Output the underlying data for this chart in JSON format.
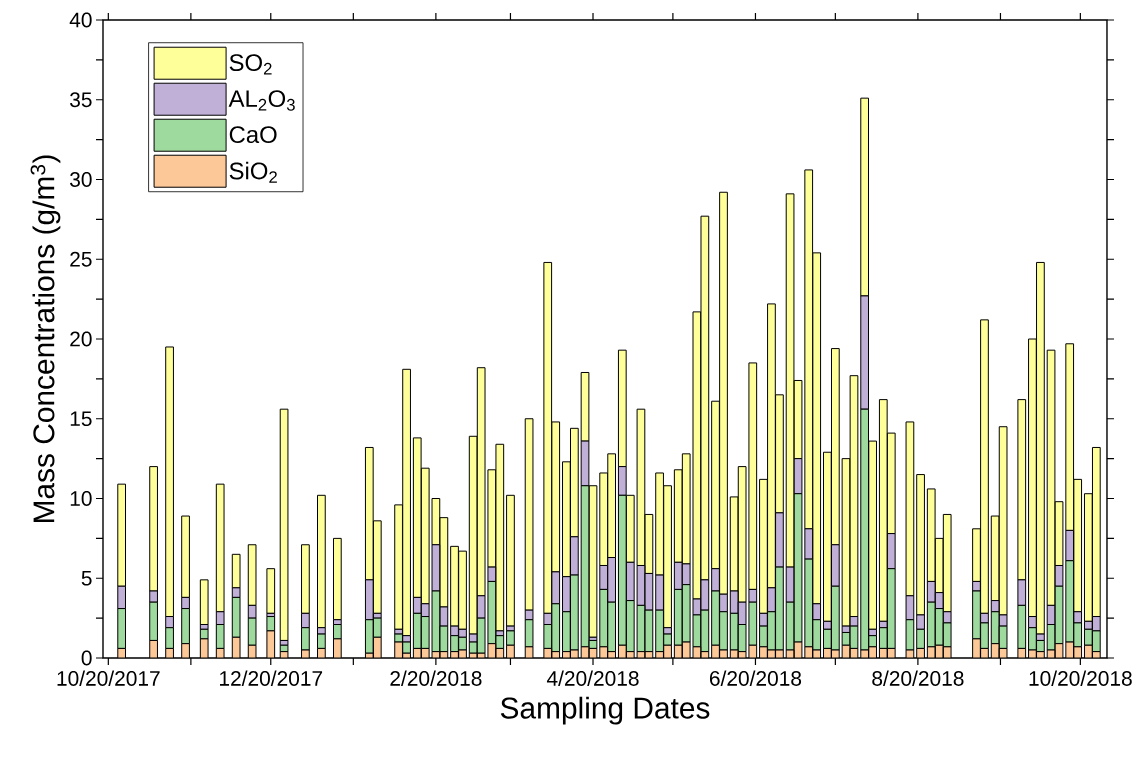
{
  "chart_data": {
    "type": "bar",
    "stacked": true,
    "xlabel": "Sampling Dates",
    "ylabel": "Mass Concentrations (g/m$^{3}$)",
    "x": [
      "2017-10-25",
      "2017-11-06",
      "2017-11-12",
      "2017-11-18",
      "2017-11-25",
      "2017-12-01",
      "2017-12-07",
      "2017-12-13",
      "2017-12-20",
      "2017-12-25",
      "2018-01-02",
      "2018-01-08",
      "2018-01-14",
      "2018-01-26",
      "2018-01-29",
      "2018-02-06",
      "2018-02-09",
      "2018-02-13",
      "2018-02-16",
      "2018-02-20",
      "2018-02-23",
      "2018-02-27",
      "2018-03-02",
      "2018-03-06",
      "2018-03-09",
      "2018-03-13",
      "2018-03-16",
      "2018-03-20",
      "2018-03-27",
      "2018-04-03",
      "2018-04-06",
      "2018-04-10",
      "2018-04-13",
      "2018-04-17",
      "2018-04-20",
      "2018-04-24",
      "2018-04-27",
      "2018-05-01",
      "2018-05-04",
      "2018-05-08",
      "2018-05-11",
      "2018-05-15",
      "2018-05-18",
      "2018-05-22",
      "2018-05-25",
      "2018-05-29",
      "2018-06-01",
      "2018-06-05",
      "2018-06-08",
      "2018-06-12",
      "2018-06-15",
      "2018-06-19",
      "2018-06-23",
      "2018-06-26",
      "2018-06-29",
      "2018-07-03",
      "2018-07-06",
      "2018-07-10",
      "2018-07-13",
      "2018-07-17",
      "2018-07-20",
      "2018-07-24",
      "2018-07-27",
      "2018-07-31",
      "2018-08-03",
      "2018-08-07",
      "2018-08-10",
      "2018-08-17",
      "2018-08-21",
      "2018-08-25",
      "2018-08-28",
      "2018-08-31",
      "2018-09-11",
      "2018-09-14",
      "2018-09-18",
      "2018-09-21",
      "2018-09-28",
      "2018-10-02",
      "2018-10-05",
      "2018-10-09",
      "2018-10-12",
      "2018-10-16",
      "2018-10-19",
      "2018-10-23",
      "2018-10-26"
    ],
    "series": [
      {
        "name": "SiO$_{2}$",
        "color": "#fdc897",
        "values": [
          0.6,
          1.1,
          0.6,
          0.9,
          1.2,
          0.6,
          1.3,
          0.8,
          1.7,
          0.4,
          0.5,
          0.6,
          1.2,
          0.3,
          1.3,
          1.0,
          0.3,
          0.6,
          0.6,
          0.4,
          0.4,
          0.4,
          0.5,
          0.3,
          0.3,
          0.9,
          0.6,
          0.8,
          0.7,
          0.6,
          0.4,
          0.4,
          0.5,
          0.7,
          0.6,
          0.7,
          0.4,
          0.8,
          0.4,
          0.4,
          0.4,
          0.4,
          0.8,
          0.8,
          1.0,
          0.7,
          0.4,
          0.8,
          0.5,
          0.5,
          0.4,
          0.8,
          0.7,
          0.5,
          0.5,
          0.5,
          1.0,
          0.7,
          0.5,
          0.6,
          0.5,
          0.8,
          0.6,
          0.5,
          0.7,
          0.6,
          0.6,
          0.5,
          0.6,
          0.7,
          0.8,
          0.7,
          1.2,
          0.6,
          0.9,
          0.6,
          0.6,
          0.5,
          0.4,
          0.5,
          0.9,
          1.0,
          0.7,
          0.8,
          0.4
        ]
      },
      {
        "name": "CaO",
        "color": "#9ed99e",
        "values": [
          2.5,
          2.4,
          1.3,
          2.2,
          0.6,
          1.5,
          2.5,
          1.7,
          0.9,
          0.4,
          1.4,
          0.9,
          0.9,
          2.1,
          1.2,
          0.5,
          0.7,
          2.2,
          2.0,
          3.8,
          1.6,
          1.0,
          0.8,
          0.7,
          2.2,
          3.9,
          0.8,
          0.9,
          1.7,
          1.5,
          3.0,
          2.5,
          4.7,
          10.1,
          0.5,
          3.6,
          3.1,
          9.4,
          3.2,
          2.9,
          2.6,
          2.6,
          0.7,
          3.5,
          3.6,
          2.0,
          2.6,
          3.4,
          2.4,
          2.3,
          1.7,
          2.7,
          1.3,
          2.4,
          5.2,
          3.0,
          9.3,
          5.5,
          1.9,
          1.2,
          4.0,
          0.8,
          1.4,
          15.1,
          0.7,
          1.3,
          5.0,
          1.9,
          1.2,
          2.8,
          2.3,
          1.5,
          3.0,
          1.6,
          2.0,
          1.4,
          2.7,
          1.4,
          0.7,
          1.6,
          3.6,
          5.1,
          1.5,
          1.0,
          1.3
        ]
      },
      {
        "name": "AL$_{2}$O$_{3}$",
        "color": "#c0b0d8",
        "values": [
          1.4,
          0.7,
          0.7,
          0.7,
          0.3,
          0.8,
          0.6,
          0.8,
          0.2,
          0.3,
          0.9,
          0.4,
          0.3,
          2.5,
          0.3,
          0.3,
          0.4,
          1.0,
          0.8,
          2.9,
          1.2,
          0.6,
          0.5,
          0.5,
          1.4,
          0.9,
          0.3,
          0.3,
          0.6,
          0.7,
          2.0,
          2.2,
          2.4,
          2.8,
          0.2,
          1.5,
          2.8,
          1.8,
          2.4,
          2.5,
          2.3,
          2.2,
          0.4,
          1.7,
          1.3,
          1.0,
          1.9,
          1.4,
          1.1,
          1.4,
          1.4,
          0.8,
          0.8,
          1.5,
          3.4,
          2.2,
          2.2,
          1.9,
          1.0,
          0.5,
          2.6,
          0.4,
          0.6,
          7.1,
          0.4,
          0.4,
          2.2,
          1.5,
          0.9,
          1.3,
          1.0,
          0.7,
          0.6,
          0.6,
          0.7,
          0.7,
          1.6,
          0.7,
          0.4,
          1.2,
          1.3,
          1.9,
          0.7,
          0.5,
          0.9
        ]
      },
      {
        "name": "SO$_{2}$",
        "color": "#ffff99",
        "values": [
          6.4,
          7.8,
          16.9,
          5.1,
          2.8,
          8.0,
          2.1,
          3.8,
          2.8,
          14.5,
          4.3,
          8.3,
          5.1,
          8.3,
          5.8,
          7.8,
          16.7,
          10.0,
          8.5,
          2.9,
          5.6,
          5.0,
          4.9,
          12.4,
          14.3,
          6.1,
          11.7,
          8.2,
          12.0,
          22.0,
          9.4,
          7.2,
          6.8,
          4.3,
          9.5,
          5.8,
          6.5,
          7.3,
          4.2,
          9.8,
          3.7,
          6.4,
          8.9,
          5.8,
          6.9,
          18.0,
          22.8,
          10.5,
          25.2,
          5.9,
          8.5,
          14.2,
          8.4,
          17.8,
          7.4,
          23.4,
          4.9,
          22.5,
          22.0,
          10.6,
          12.3,
          10.5,
          15.1,
          12.4,
          11.8,
          13.9,
          6.3,
          10.9,
          8.8,
          5.8,
          3.4,
          6.1,
          3.3,
          18.4,
          5.3,
          11.8,
          11.3,
          17.4,
          23.3,
          16.0,
          4.0,
          11.7,
          8.3,
          8.0,
          10.6
        ]
      }
    ],
    "xlim": [
      "2017-10-18",
      "2018-10-30"
    ],
    "xticks": [
      {
        "value": "2017-10-20",
        "label": "10/20/2017"
      },
      {
        "value": "2017-11-20",
        "label": null
      },
      {
        "value": "2017-12-20",
        "label": "12/20/2017"
      },
      {
        "value": "2018-01-20",
        "label": null
      },
      {
        "value": "2018-02-20",
        "label": "2/20/2018"
      },
      {
        "value": "2018-03-20",
        "label": null
      },
      {
        "value": "2018-04-20",
        "label": "4/20/2018"
      },
      {
        "value": "2018-05-20",
        "label": null
      },
      {
        "value": "2018-06-20",
        "label": "6/20/2018"
      },
      {
        "value": "2018-07-20",
        "label": null
      },
      {
        "value": "2018-08-20",
        "label": "8/20/2018"
      },
      {
        "value": "2018-09-20",
        "label": null
      },
      {
        "value": "2018-10-20",
        "label": "10/20/2018"
      }
    ],
    "ylim": [
      0,
      40
    ],
    "yticks": [
      0,
      {
        "value": 2.5,
        "label": null
      },
      5,
      {
        "value": 7.5,
        "label": null
      },
      10,
      {
        "value": 12.5,
        "label": null
      },
      15,
      {
        "value": 17.5,
        "label": null
      },
      20,
      {
        "value": 22.5,
        "label": null
      },
      25,
      {
        "value": 27.5,
        "label": null
      },
      30,
      {
        "value": 32.5,
        "label": null
      },
      35,
      {
        "value": 37.5,
        "label": null
      },
      40
    ],
    "legend": "top left"
  }
}
